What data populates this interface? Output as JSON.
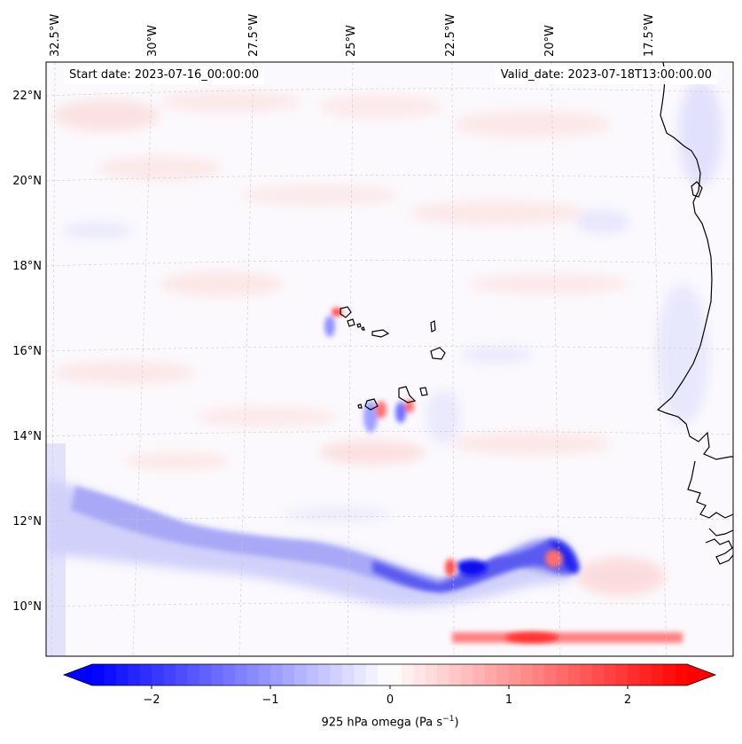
{
  "header": {
    "start_date": "Start date: 2023-07-16_00:00:00",
    "valid_date": "Valid_date: 2023-07-18T13:00:00.00"
  },
  "map": {
    "lon_ticks": [
      "32.5°W",
      "30°W",
      "27.5°W",
      "25°W",
      "22.5°W",
      "20°W",
      "17.5°W"
    ],
    "lat_ticks": [
      "22°N",
      "20°N",
      "18°N",
      "16°N",
      "14°N",
      "12°N",
      "10°N"
    ],
    "field_colormap": "bwr",
    "gridlines": true
  },
  "colorbar": {
    "title": "925 hPa omega (Pa s",
    "title_sup": "−1",
    "title_end": ")",
    "ticks": [
      "−2",
      "−1",
      "0",
      "1",
      "2"
    ],
    "range": [
      -2.6,
      2.6
    ],
    "low_color": "#0000ff",
    "mid_color": "#ffffff",
    "high_color": "#ff0000",
    "extend": "both"
  }
}
